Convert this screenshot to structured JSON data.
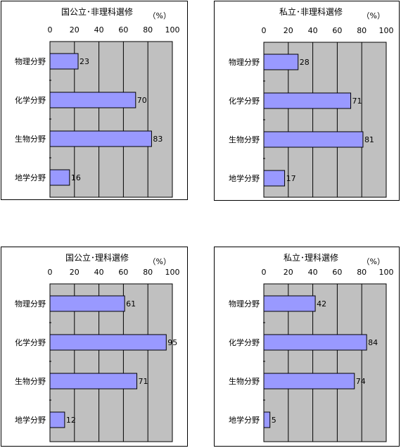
{
  "chart_data": [
    {
      "type": "bar",
      "orientation": "horizontal",
      "title": "国公立･非理科選修",
      "unit": "（%）",
      "categories": [
        "物理分野",
        "化学分野",
        "生物分野",
        "地学分野"
      ],
      "values": [
        23,
        70,
        83,
        16
      ],
      "xlim": [
        0,
        100
      ],
      "xticks": [
        "0",
        "20",
        "40",
        "60",
        "80",
        "100"
      ],
      "grid": true,
      "legend": "none",
      "colors": {
        "bar": "#9999ff",
        "plot_bg": "#c0c0c0"
      }
    },
    {
      "type": "bar",
      "orientation": "horizontal",
      "title": "私立･非理科選修",
      "unit": "（%）",
      "categories": [
        "物理分野",
        "化学分野",
        "生物分野",
        "地学分野"
      ],
      "values": [
        28,
        71,
        81,
        17
      ],
      "xlim": [
        0,
        100
      ],
      "xticks": [
        "0",
        "20",
        "40",
        "60",
        "80",
        "100"
      ],
      "grid": true,
      "legend": "none",
      "colors": {
        "bar": "#9999ff",
        "plot_bg": "#c0c0c0"
      }
    },
    {
      "type": "bar",
      "orientation": "horizontal",
      "title": "国公立･理科選修",
      "unit": "（%）",
      "categories": [
        "物理分野",
        "化学分野",
        "生物分野",
        "地学分野"
      ],
      "values": [
        61,
        95,
        71,
        12
      ],
      "xlim": [
        0,
        100
      ],
      "xticks": [
        "0",
        "20",
        "40",
        "60",
        "80",
        "100"
      ],
      "grid": true,
      "legend": "none",
      "colors": {
        "bar": "#9999ff",
        "plot_bg": "#c0c0c0"
      }
    },
    {
      "type": "bar",
      "orientation": "horizontal",
      "title": "私立･理科選修",
      "unit": "（%）",
      "categories": [
        "物理分野",
        "化学分野",
        "生物分野",
        "地学分野"
      ],
      "values": [
        42,
        84,
        74,
        5
      ],
      "xlim": [
        0,
        100
      ],
      "xticks": [
        "0",
        "20",
        "40",
        "60",
        "80",
        "100"
      ],
      "grid": true,
      "legend": "none",
      "colors": {
        "bar": "#9999ff",
        "plot_bg": "#c0c0c0"
      }
    }
  ]
}
